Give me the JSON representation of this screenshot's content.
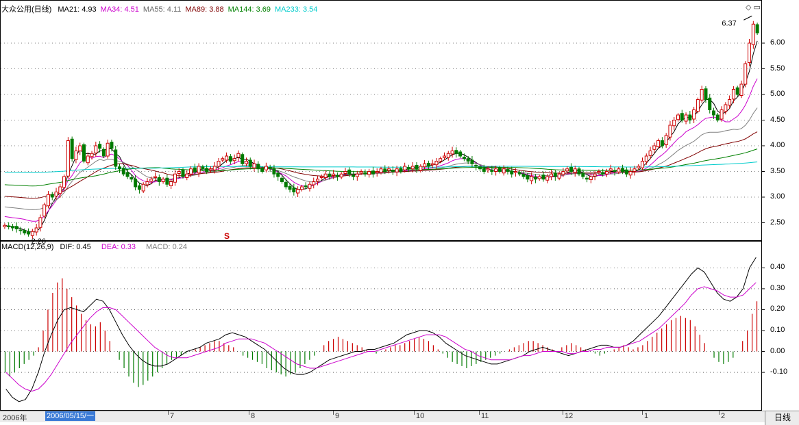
{
  "price_panel": {
    "stock_name": "大众公用(日线)",
    "indicators": [
      {
        "label": "MA21:",
        "value": "4.93",
        "color": "#000000"
      },
      {
        "label": "MA34:",
        "value": "4.51",
        "color": "#cc00cc"
      },
      {
        "label": "MA55:",
        "value": "4.11",
        "color": "#808080"
      },
      {
        "label": "MA89:",
        "value": "3.88",
        "color": "#800000"
      },
      {
        "label": "MA144:",
        "value": "3.69",
        "color": "#008000"
      },
      {
        "label": "MA233:",
        "value": "3.54",
        "color": "#00cccc"
      }
    ],
    "high_annotation": "6.37",
    "low_annotation": "2.26",
    "marker": "S",
    "y_ticks": [
      "6.00",
      "5.50",
      "5.00",
      "4.50",
      "4.00",
      "3.50",
      "3.00",
      "2.50"
    ]
  },
  "macd_panel": {
    "title": "MACD(12,26,9)",
    "dif": {
      "label": "DIF:",
      "value": "0.45",
      "color": "#000000"
    },
    "dea": {
      "label": "DEA:",
      "value": "0.33",
      "color": "#cc00cc"
    },
    "macd": {
      "label": "MACD:",
      "value": "0.24",
      "color": "#808080"
    },
    "y_ticks": [
      "0.40",
      "0.30",
      "0.20",
      "0.10",
      "0.00",
      "-0.10"
    ]
  },
  "date_axis": {
    "start_label": "2006年",
    "selected_date": "2006/05/15/一",
    "month_labels": [
      "7",
      "8",
      "9",
      "10",
      "11",
      "12",
      "1",
      "2"
    ],
    "period_button": "日线"
  },
  "chart_data": [
    {
      "type": "candlestick",
      "ylim": [
        2.2,
        6.6
      ],
      "annotations": [
        "6.37",
        "2.26"
      ],
      "ma_series": [
        {
          "name": "MA21",
          "last": 4.93
        },
        {
          "name": "MA34",
          "last": 4.51
        },
        {
          "name": "MA55",
          "last": 4.11
        },
        {
          "name": "MA89",
          "last": 3.88
        },
        {
          "name": "MA144",
          "last": 3.69
        },
        {
          "name": "MA233",
          "last": 3.54
        }
      ],
      "close": [
        2.45,
        2.42,
        2.4,
        2.38,
        2.35,
        2.3,
        2.28,
        2.33,
        2.4,
        2.6,
        2.85,
        3.05,
        3.0,
        3.1,
        3.2,
        3.4,
        4.1,
        3.75,
        3.9,
        4.0,
        3.7,
        3.8,
        3.85,
        4.0,
        3.95,
        3.8,
        4.05,
        3.95,
        3.6,
        3.55,
        3.45,
        3.4,
        3.35,
        3.2,
        3.15,
        3.25,
        3.3,
        3.35,
        3.4,
        3.3,
        3.35,
        3.25,
        3.3,
        3.45,
        3.5,
        3.4,
        3.45,
        3.55,
        3.5,
        3.6,
        3.55,
        3.5,
        3.55,
        3.6,
        3.7,
        3.75,
        3.8,
        3.7,
        3.75,
        3.85,
        3.65,
        3.7,
        3.6,
        3.65,
        3.55,
        3.5,
        3.6,
        3.55,
        3.45,
        3.4,
        3.3,
        3.2,
        3.15,
        3.1,
        3.15,
        3.2,
        3.2,
        3.25,
        3.3,
        3.35,
        3.4,
        3.45,
        3.4,
        3.45,
        3.4,
        3.45,
        3.5,
        3.45,
        3.4,
        3.45,
        3.5,
        3.45,
        3.5,
        3.45,
        3.5,
        3.55,
        3.5,
        3.55,
        3.5,
        3.55,
        3.5,
        3.6,
        3.55,
        3.6,
        3.55,
        3.6,
        3.65,
        3.6,
        3.65,
        3.7,
        3.75,
        3.8,
        3.85,
        3.9,
        3.85,
        3.8,
        3.75,
        3.7,
        3.65,
        3.6,
        3.55,
        3.5,
        3.55,
        3.5,
        3.55,
        3.5,
        3.55,
        3.5,
        3.45,
        3.5,
        3.45,
        3.4,
        3.35,
        3.4,
        3.35,
        3.4,
        3.35,
        3.4,
        3.45,
        3.4,
        3.45,
        3.5,
        3.55,
        3.5,
        3.55,
        3.45,
        3.4,
        3.35,
        3.4,
        3.45,
        3.5,
        3.45,
        3.5,
        3.55,
        3.5,
        3.55,
        3.5,
        3.45,
        3.5,
        3.55,
        3.6,
        3.7,
        3.8,
        3.9,
        4.0,
        4.1,
        4.0,
        4.2,
        4.4,
        4.5,
        4.6,
        4.5,
        4.6,
        4.5,
        4.7,
        4.9,
        5.1,
        4.9,
        4.7,
        4.6,
        4.5,
        4.7,
        4.8,
        4.9,
        5.1,
        5.0,
        5.2,
        5.6,
        6.0,
        6.37,
        6.2
      ],
      "macd_hist": [
        -0.1,
        -0.12,
        -0.1,
        -0.08,
        -0.06,
        -0.04,
        -0.02,
        0.02,
        0.1,
        0.2,
        0.28,
        0.33,
        0.35,
        0.3,
        0.26,
        0.22,
        0.18,
        0.15,
        0.13,
        0.12,
        0.14,
        0.1,
        0.05,
        0.0,
        -0.04,
        -0.08,
        -0.12,
        -0.15,
        -0.17,
        -0.16,
        -0.14,
        -0.12,
        -0.1,
        -0.08,
        -0.06,
        -0.04,
        -0.03,
        -0.02,
        -0.01,
        0.0,
        0.01,
        0.02,
        0.03,
        0.04,
        0.05,
        0.05,
        0.04,
        0.03,
        0.02,
        0.0,
        -0.02,
        -0.03,
        -0.04,
        -0.05,
        -0.06,
        -0.08,
        -0.09,
        -0.1,
        -0.11,
        -0.12,
        -0.11,
        -0.1,
        -0.08,
        -0.06,
        -0.04,
        -0.02,
        0.0,
        0.03,
        0.05,
        0.06,
        0.07,
        0.06,
        0.05,
        0.04,
        0.03,
        0.02,
        0.01,
        0.0,
        -0.01,
        0.0,
        0.01,
        0.02,
        0.03,
        0.03,
        0.04,
        0.05,
        0.06,
        0.07,
        0.06,
        0.05,
        0.03,
        0.01,
        -0.01,
        -0.03,
        -0.05,
        -0.06,
        -0.07,
        -0.08,
        -0.07,
        -0.06,
        -0.05,
        -0.04,
        -0.03,
        -0.02,
        -0.01,
        0.0,
        0.01,
        0.02,
        0.03,
        0.04,
        0.05,
        0.05,
        0.04,
        0.03,
        0.02,
        0.01,
        0.0,
        0.02,
        0.03,
        0.04,
        0.03,
        0.02,
        0.01,
        0.0,
        -0.01,
        -0.02,
        -0.01,
        0.0,
        0.01,
        0.02,
        0.03,
        0.02,
        0.01,
        0.02,
        0.03,
        0.05,
        0.07,
        0.09,
        0.11,
        0.13,
        0.15,
        0.16,
        0.17,
        0.16,
        0.15,
        0.12,
        0.08,
        0.04,
        0.0,
        -0.03,
        -0.05,
        -0.06,
        -0.05,
        -0.03,
        0.0,
        0.05,
        0.1,
        0.18,
        0.24
      ]
    },
    {
      "type": "line",
      "ylim": [
        -0.27,
        0.47
      ],
      "series": [
        {
          "name": "DIF",
          "values": [
            -0.18,
            -0.22,
            -0.24,
            -0.23,
            -0.18,
            -0.1,
            0.0,
            0.08,
            0.15,
            0.2,
            0.21,
            0.2,
            0.19,
            0.22,
            0.25,
            0.24,
            0.2,
            0.14,
            0.08,
            0.03,
            -0.01,
            -0.04,
            -0.06,
            -0.07,
            -0.07,
            -0.06,
            -0.04,
            -0.02,
            0.0,
            0.01,
            0.02,
            0.04,
            0.05,
            0.06,
            0.08,
            0.09,
            0.08,
            0.07,
            0.05,
            0.03,
            0.01,
            -0.02,
            -0.05,
            -0.08,
            -0.1,
            -0.11,
            -0.11,
            -0.1,
            -0.08,
            -0.06,
            -0.04,
            -0.03,
            -0.02,
            -0.01,
            0.0,
            0.0,
            0.01,
            0.01,
            0.02,
            0.03,
            0.04,
            0.06,
            0.08,
            0.09,
            0.1,
            0.1,
            0.09,
            0.07,
            0.04,
            0.02,
            0.0,
            -0.02,
            -0.03,
            -0.04,
            -0.05,
            -0.06,
            -0.06,
            -0.05,
            -0.04,
            -0.03,
            -0.02,
            0.0,
            0.01,
            0.02,
            0.01,
            0.0,
            -0.01,
            -0.02,
            -0.01,
            0.0,
            0.01,
            0.02,
            0.03,
            0.03,
            0.02,
            0.02,
            0.03,
            0.05,
            0.08,
            0.11,
            0.14,
            0.17,
            0.21,
            0.25,
            0.29,
            0.33,
            0.37,
            0.4,
            0.38,
            0.33,
            0.28,
            0.25,
            0.24,
            0.26,
            0.3,
            0.4,
            0.45
          ]
        },
        {
          "name": "DEA",
          "values": [
            -0.1,
            -0.13,
            -0.16,
            -0.18,
            -0.19,
            -0.18,
            -0.15,
            -0.11,
            -0.06,
            -0.01,
            0.04,
            0.08,
            0.12,
            0.16,
            0.19,
            0.21,
            0.21,
            0.2,
            0.17,
            0.14,
            0.11,
            0.08,
            0.05,
            0.02,
            0.0,
            -0.02,
            -0.03,
            -0.03,
            -0.03,
            -0.02,
            -0.01,
            0.0,
            0.01,
            0.02,
            0.04,
            0.05,
            0.06,
            0.06,
            0.06,
            0.05,
            0.04,
            0.02,
            0.0,
            -0.02,
            -0.04,
            -0.06,
            -0.07,
            -0.08,
            -0.08,
            -0.07,
            -0.06,
            -0.05,
            -0.04,
            -0.03,
            -0.02,
            -0.01,
            0.0,
            0.0,
            0.01,
            0.02,
            0.03,
            0.04,
            0.05,
            0.06,
            0.07,
            0.08,
            0.08,
            0.08,
            0.07,
            0.05,
            0.03,
            0.01,
            0.0,
            -0.02,
            -0.03,
            -0.04,
            -0.04,
            -0.04,
            -0.04,
            -0.03,
            -0.02,
            -0.02,
            -0.01,
            0.0,
            0.0,
            0.0,
            0.0,
            -0.01,
            -0.01,
            0.0,
            0.0,
            0.01,
            0.01,
            0.02,
            0.02,
            0.02,
            0.03,
            0.04,
            0.05,
            0.07,
            0.09,
            0.11,
            0.14,
            0.17,
            0.2,
            0.23,
            0.27,
            0.3,
            0.31,
            0.3,
            0.29,
            0.27,
            0.26,
            0.26,
            0.27,
            0.3,
            0.33
          ]
        }
      ]
    }
  ]
}
